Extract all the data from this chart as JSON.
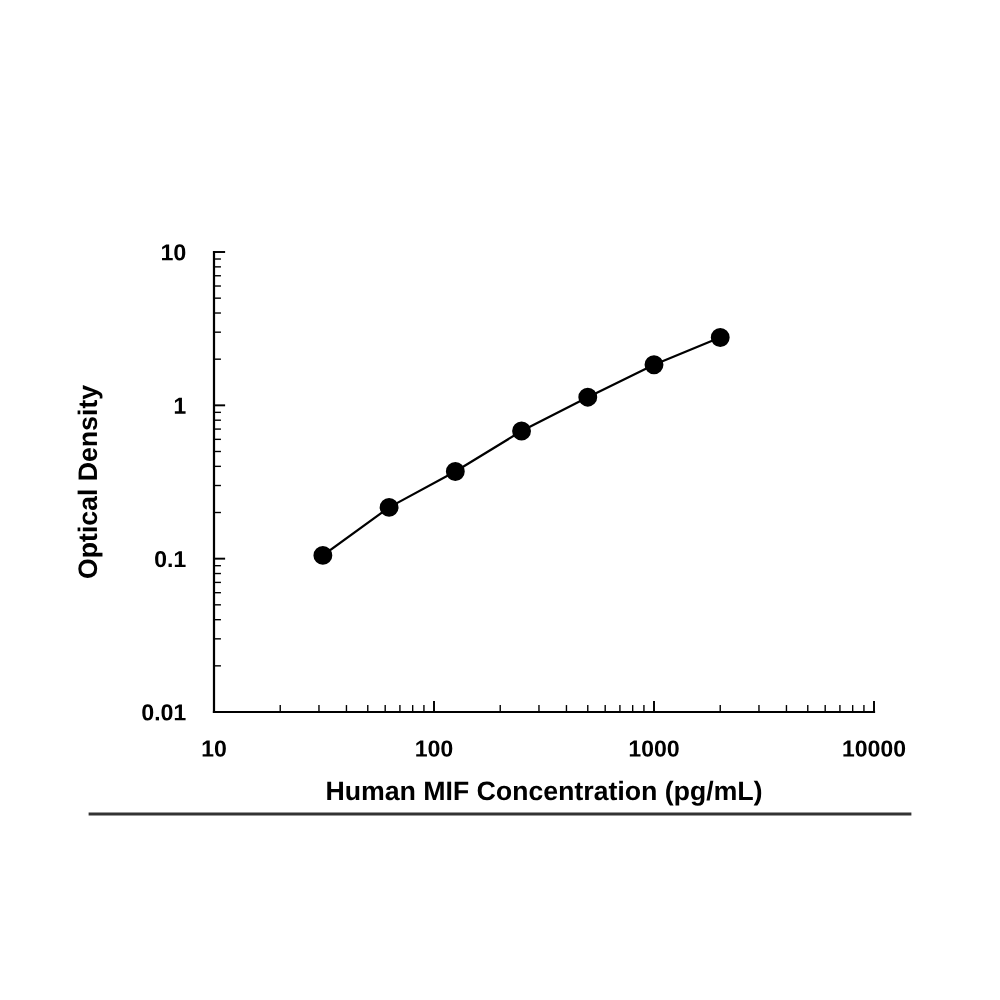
{
  "chart_data": {
    "type": "line",
    "xlabel": "Human MIF Concentration (pg/mL)",
    "ylabel": "Optical Density",
    "x": [
      31.25,
      62.5,
      125,
      250,
      500,
      1000,
      2000
    ],
    "series": [
      {
        "color": "#000000",
        "values": [
          0.105,
          0.216,
          0.37,
          0.68,
          1.13,
          1.84,
          2.77
        ]
      }
    ],
    "marker": "circle",
    "line_style": "solid",
    "log": "xy",
    "grid": false,
    "xlim": [
      10,
      10000
    ],
    "ylim": [
      0.01,
      10
    ],
    "xticks": [
      10,
      100,
      1000,
      10000
    ],
    "yticks": [
      0.01,
      0.1,
      1,
      10
    ]
  }
}
